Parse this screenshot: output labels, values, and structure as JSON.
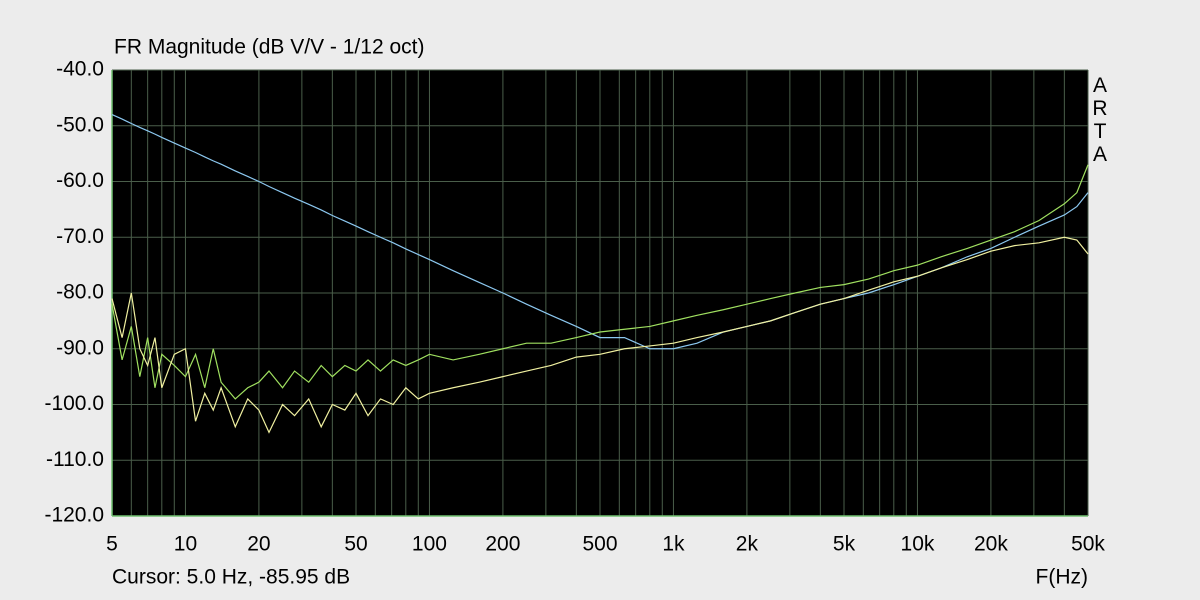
{
  "chart_data": {
    "type": "line",
    "title": "FR Magnitude (dB V/V - 1/12 oct)",
    "watermark": "ARTA",
    "cursor": "Cursor: 5.0 Hz, -85.95 dB",
    "x_label": "F(Hz)",
    "xscale": "log",
    "grid": true,
    "xlim": [
      5,
      50000
    ],
    "ylim": [
      -120,
      -40
    ],
    "xticks": [
      5,
      10,
      20,
      50,
      100,
      200,
      500,
      {
        "value": 1000,
        "label": "1k"
      },
      {
        "value": 2000,
        "label": "2k"
      },
      {
        "value": 5000,
        "label": "5k"
      },
      {
        "value": 10000,
        "label": "10k"
      },
      {
        "value": 20000,
        "label": "20k"
      },
      {
        "value": 50000,
        "label": "50k"
      }
    ],
    "xminor": [
      6,
      7,
      8,
      9,
      30,
      40,
      60,
      70,
      80,
      90,
      300,
      400,
      600,
      700,
      800,
      900,
      3000,
      4000,
      6000,
      7000,
      8000,
      9000,
      30000,
      40000
    ],
    "yticks": [
      {
        "value": -40,
        "label": "-40.0"
      },
      {
        "value": -50,
        "label": "-50.0"
      },
      {
        "value": -60,
        "label": "-60.0"
      },
      {
        "value": -70,
        "label": "-70.0"
      },
      {
        "value": -80,
        "label": "-80.0"
      },
      {
        "value": -90,
        "label": "-90.0"
      },
      {
        "value": -100,
        "label": "-100.0"
      },
      {
        "value": -110,
        "label": "-110.0"
      },
      {
        "value": -120,
        "label": "-120.0"
      }
    ],
    "x": [
      5,
      5.5,
      6,
      6.5,
      7,
      7.5,
      8,
      9,
      10,
      11,
      12,
      13,
      14,
      16,
      18,
      20,
      22,
      25,
      28,
      32,
      36,
      40,
      45,
      50,
      56,
      63,
      71,
      80,
      90,
      100,
      125,
      160,
      200,
      250,
      315,
      400,
      500,
      630,
      800,
      1000,
      1250,
      1600,
      2000,
      2500,
      3150,
      4000,
      5000,
      6300,
      8000,
      10000,
      12500,
      16000,
      20000,
      25000,
      31500,
      40000,
      45000,
      50000
    ],
    "series": [
      {
        "color": "#8cc8f0",
        "values": [
          -48,
          -48.8,
          -49.6,
          -50.3,
          -50.9,
          -51.5,
          -52.1,
          -53.1,
          -54,
          -54.8,
          -55.6,
          -56.3,
          -56.9,
          -58.1,
          -59.1,
          -60,
          -60.9,
          -62,
          -63,
          -64.1,
          -65.1,
          -66.1,
          -67.1,
          -68,
          -69,
          -70,
          -71,
          -72.1,
          -73.1,
          -74,
          -76,
          -78.1,
          -80,
          -82,
          -84,
          -86,
          -88,
          -88,
          -90,
          -90,
          -89,
          -87,
          -86,
          -85,
          -83.5,
          -82,
          -81,
          -80,
          -78.5,
          -77,
          -75.5,
          -73.5,
          -72,
          -70,
          -68,
          -66,
          -64.5,
          -62
        ]
      },
      {
        "color": "#a0e060",
        "values": [
          -82,
          -92,
          -86,
          -95,
          -88,
          -97,
          -91,
          -93,
          -95,
          -91,
          -97,
          -90,
          -96,
          -99,
          -97,
          -96,
          -94,
          -97,
          -94,
          -96,
          -93,
          -95,
          -93,
          -94,
          -92,
          -94,
          -92,
          -93,
          -92,
          -91,
          -92,
          -91,
          -90,
          -89,
          -89,
          -88,
          -87,
          -86.5,
          -86,
          -85,
          -84,
          -83,
          -82,
          -81,
          -80,
          -79,
          -78.5,
          -77.5,
          -76,
          -75,
          -73.5,
          -72,
          -70.5,
          -69,
          -67,
          -64,
          -62,
          -57
        ]
      },
      {
        "color": "#f0f0a0",
        "values": [
          -81,
          -88,
          -80,
          -90,
          -93,
          -88,
          -97,
          -91,
          -90,
          -103,
          -98,
          -101,
          -97,
          -104,
          -99,
          -101,
          -105,
          -100,
          -102,
          -99,
          -104,
          -100,
          -101,
          -98,
          -102,
          -99,
          -100,
          -97,
          -99,
          -98,
          -97,
          -96,
          -95,
          -94,
          -93,
          -91.5,
          -91,
          -90,
          -89.5,
          -89,
          -88,
          -87,
          -86,
          -85,
          -83.5,
          -82,
          -81,
          -79.5,
          -78,
          -77,
          -75.5,
          -74,
          -72.5,
          -71.5,
          -71,
          -70,
          -70.5,
          -73
        ]
      }
    ]
  }
}
